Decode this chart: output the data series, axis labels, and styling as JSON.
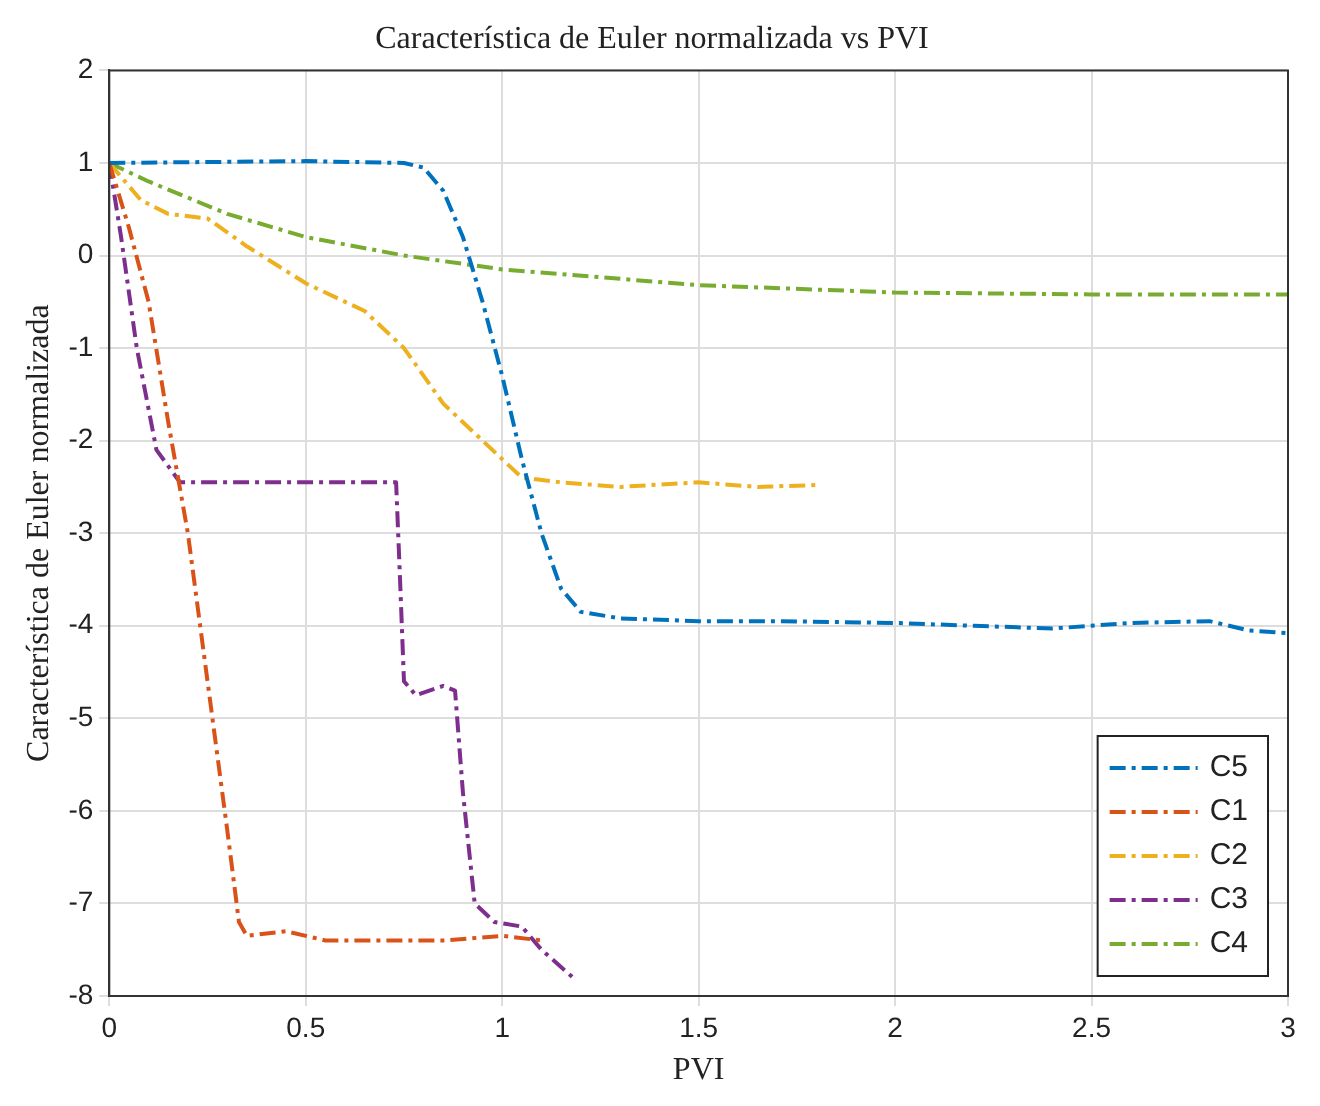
{
  "chart_data": {
    "type": "line",
    "title": "Característica de Euler normalizada vs PVI",
    "xlabel": "PVI",
    "ylabel": "Característica de Euler normalizada",
    "xlim": [
      0,
      3
    ],
    "xticks": [
      0,
      0.5,
      1,
      1.5,
      2,
      2.5,
      3
    ],
    "ylim": [
      -8,
      2
    ],
    "yticks": [
      -8,
      -7,
      -6,
      -5,
      -4,
      -3,
      -2,
      -1,
      0,
      1,
      2
    ],
    "grid": true,
    "legend": "bottom right",
    "line_style": "dashed",
    "marker": "none",
    "series": [
      {
        "name": "C5",
        "color": "#0072bd",
        "x": [
          0,
          0.5,
          0.75,
          0.8,
          0.85,
          0.9,
          0.95,
          1.0,
          1.05,
          1.1,
          1.15,
          1.2,
          1.3,
          1.5,
          1.7,
          2.0,
          2.2,
          2.4,
          2.6,
          2.8,
          2.9,
          3.0
        ],
        "values": [
          1,
          1.02,
          1.0,
          0.95,
          0.7,
          0.2,
          -0.5,
          -1.3,
          -2.2,
          -3.0,
          -3.6,
          -3.85,
          -3.92,
          -3.95,
          -3.95,
          -3.97,
          -4.0,
          -4.03,
          -3.97,
          -3.95,
          -4.05,
          -4.08
        ]
      },
      {
        "name": "C1",
        "color": "#d95319",
        "x": [
          0,
          0.05,
          0.1,
          0.15,
          0.2,
          0.25,
          0.3,
          0.33,
          0.35,
          0.45,
          0.55,
          0.7,
          0.85,
          1.0,
          1.1
        ],
        "values": [
          1,
          0.3,
          -0.5,
          -1.8,
          -3.0,
          -4.6,
          -6.2,
          -7.2,
          -7.35,
          -7.3,
          -7.4,
          -7.4,
          -7.4,
          -7.35,
          -7.4
        ]
      },
      {
        "name": "C2",
        "color": "#edb120",
        "x": [
          0,
          0.08,
          0.15,
          0.25,
          0.35,
          0.5,
          0.65,
          0.75,
          0.85,
          0.95,
          1.05,
          1.15,
          1.3,
          1.5,
          1.65,
          1.8
        ],
        "values": [
          1,
          0.6,
          0.45,
          0.4,
          0.1,
          -0.3,
          -0.6,
          -1.0,
          -1.6,
          -2.0,
          -2.4,
          -2.45,
          -2.5,
          -2.45,
          -2.5,
          -2.48
        ]
      },
      {
        "name": "C3",
        "color": "#7e2f8e",
        "x": [
          0,
          0.03,
          0.07,
          0.12,
          0.18,
          0.3,
          0.5,
          0.73,
          0.74,
          0.75,
          0.78,
          0.85,
          0.88,
          0.9,
          0.93,
          0.98,
          1.05,
          1.1,
          1.18
        ],
        "values": [
          1,
          0.2,
          -1.0,
          -2.1,
          -2.45,
          -2.45,
          -2.45,
          -2.45,
          -3.5,
          -4.6,
          -4.75,
          -4.65,
          -4.7,
          -5.8,
          -7.0,
          -7.2,
          -7.25,
          -7.5,
          -7.8
        ]
      },
      {
        "name": "C4",
        "color": "#77ac30",
        "x": [
          0,
          0.1,
          0.3,
          0.5,
          0.75,
          1.0,
          1.5,
          2.0,
          2.5,
          3.0
        ],
        "values": [
          1,
          0.8,
          0.45,
          0.2,
          0.0,
          -0.15,
          -0.32,
          -0.4,
          -0.42,
          -0.42
        ]
      }
    ]
  }
}
